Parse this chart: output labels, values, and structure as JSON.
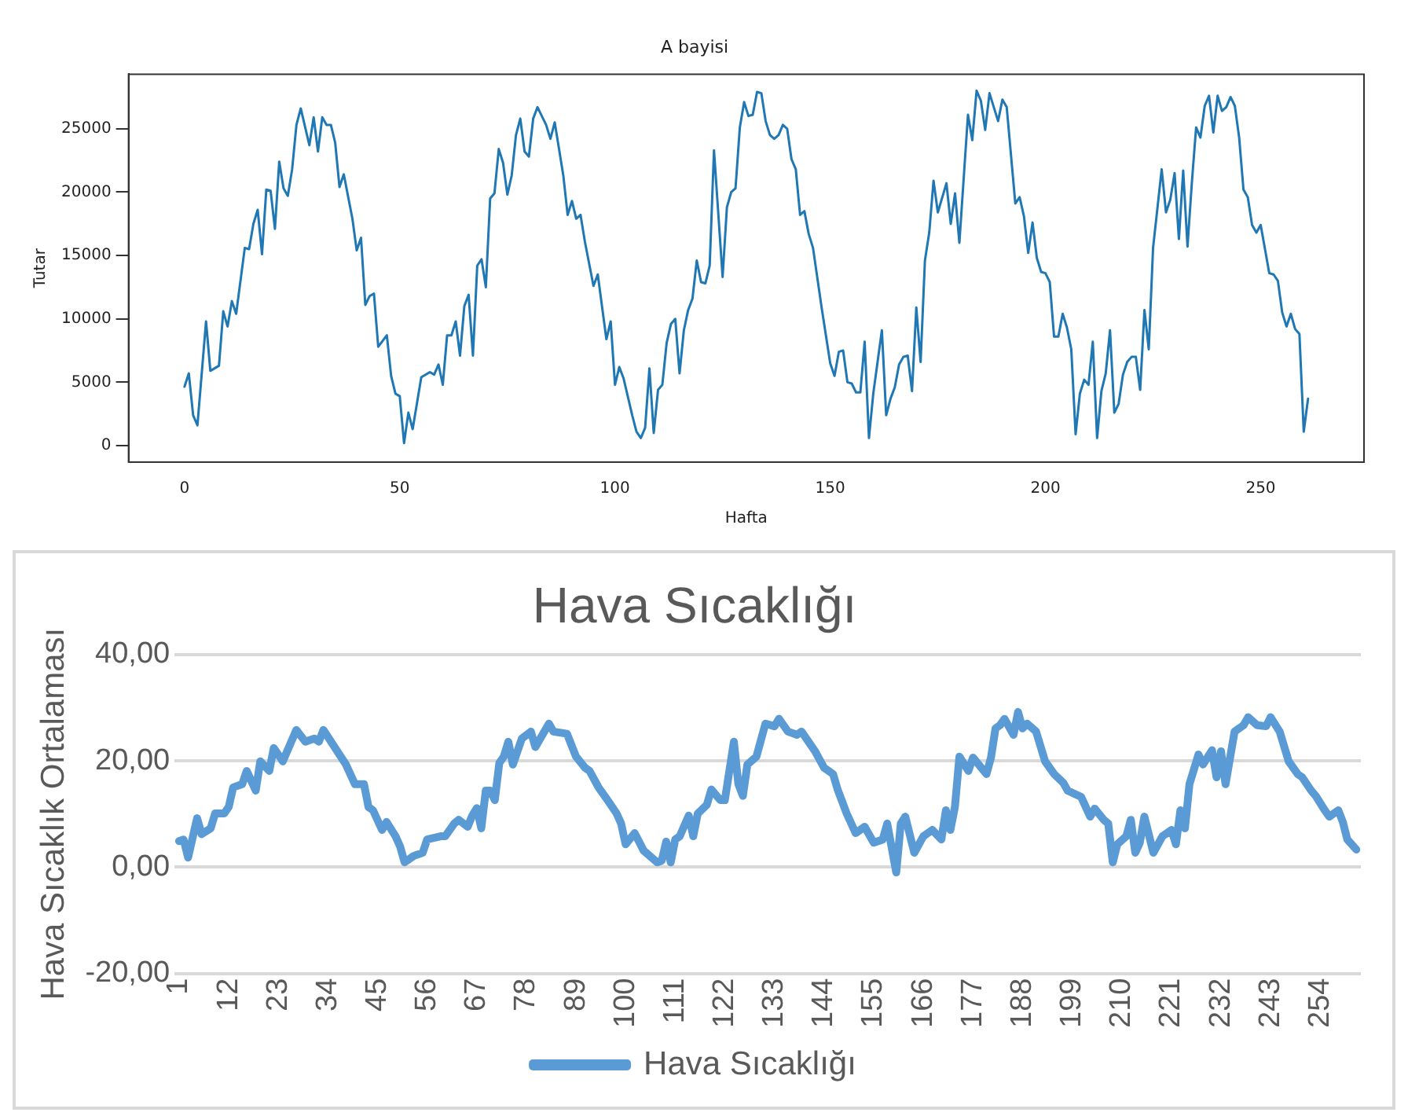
{
  "chart_data": [
    {
      "type": "line",
      "title": "A bayisi",
      "xlabel": "Hafta",
      "ylabel": "Tutar",
      "x": [
        0,
        1,
        2,
        3,
        5,
        6,
        8,
        9,
        10,
        11,
        12,
        14,
        15,
        16,
        17,
        18,
        19,
        20,
        21,
        22,
        23,
        24,
        25,
        26,
        27,
        29,
        30,
        31,
        32,
        33,
        34,
        35,
        36,
        37,
        39,
        40,
        41,
        42,
        43,
        44,
        45,
        47,
        48,
        49,
        50,
        51,
        52,
        53,
        55,
        57,
        58,
        59,
        60,
        61,
        62,
        63,
        64,
        65,
        66,
        67,
        68,
        69,
        70,
        71,
        72,
        73,
        74,
        75,
        76,
        77,
        78,
        79,
        80,
        81,
        82,
        84,
        85,
        86,
        87,
        88,
        89,
        90,
        91,
        92,
        93,
        95,
        96,
        98,
        99,
        100,
        101,
        102,
        104,
        105,
        106,
        107,
        108,
        109,
        110,
        111,
        112,
        113,
        114,
        115,
        116,
        117,
        118,
        119,
        120,
        121,
        122,
        123,
        125,
        126,
        127,
        128,
        129,
        130,
        131,
        132,
        133,
        134,
        135,
        136,
        137,
        138,
        139,
        140,
        141,
        142,
        143,
        144,
        145,
        146,
        148,
        150,
        151,
        152,
        153,
        154,
        155,
        156,
        157,
        158,
        159,
        160,
        162,
        163,
        164,
        165,
        166,
        167,
        168,
        169,
        170,
        171,
        172,
        173,
        174,
        175,
        177,
        178,
        179,
        180,
        182,
        183,
        184,
        185,
        186,
        187,
        189,
        190,
        191,
        193,
        194,
        195,
        196,
        197,
        198,
        199,
        200,
        201,
        202,
        203,
        204,
        205,
        206,
        207,
        208,
        209,
        210,
        211,
        212,
        213,
        214,
        215,
        216,
        217,
        218,
        219,
        220,
        221,
        222,
        223,
        224,
        225,
        227,
        228,
        229,
        230,
        231,
        232,
        233,
        234,
        235,
        236,
        237,
        238,
        239,
        240,
        241,
        242,
        243,
        244,
        245,
        246,
        247,
        248,
        249,
        250,
        252,
        253,
        254,
        255,
        256,
        257,
        258,
        259,
        260,
        261
      ],
      "series": [
        {
          "color": "#1f77b4",
          "values": [
            4650,
            5700,
            2400,
            1600,
            9800,
            5900,
            6300,
            10600,
            9400,
            11400,
            10400,
            15600,
            15500,
            17500,
            18600,
            15100,
            20200,
            20100,
            17100,
            22400,
            20300,
            19700,
            21800,
            25300,
            26600,
            23700,
            25900,
            23200,
            25900,
            25300,
            25300,
            23900,
            20400,
            21400,
            17900,
            15400,
            16400,
            11100,
            11800,
            12000,
            7800,
            8700,
            5500,
            4100,
            3900,
            200,
            2600,
            1300,
            5400,
            5800,
            5600,
            6400,
            4800,
            8700,
            8700,
            9800,
            7100,
            11000,
            11900,
            7100,
            14200,
            14700,
            12500,
            19500,
            19900,
            23400,
            22300,
            19800,
            21300,
            24500,
            25800,
            23200,
            22800,
            25800,
            26700,
            25300,
            24200,
            25500,
            23400,
            21300,
            18200,
            19300,
            17900,
            18200,
            16100,
            12600,
            13500,
            8400,
            9800,
            4800,
            6200,
            5300,
            2400,
            1100,
            600,
            1400,
            6100,
            1000,
            4400,
            4800,
            8100,
            9600,
            10000,
            5700,
            9100,
            10700,
            11600,
            14600,
            12900,
            12800,
            14200,
            23300,
            13300,
            18800,
            20000,
            20300,
            25100,
            27100,
            26000,
            26100,
            27900,
            27800,
            25600,
            24500,
            24200,
            24500,
            25300,
            25000,
            22600,
            21800,
            18200,
            18500,
            16700,
            15600,
            10900,
            6500,
            5500,
            7400,
            7500,
            5000,
            4900,
            4200,
            4200,
            8200,
            600,
            4100,
            9100,
            2400,
            3700,
            4600,
            6400,
            7000,
            7100,
            4300,
            10900,
            6600,
            14600,
            16800,
            20900,
            18400,
            20700,
            17500,
            19900,
            16000,
            26100,
            24100,
            28000,
            27200,
            24900,
            27800,
            25600,
            27300,
            26700,
            19100,
            19600,
            18100,
            15200,
            17600,
            14800,
            13700,
            13600,
            12900,
            8600,
            8600,
            10400,
            9300,
            7600,
            900,
            4100,
            5200,
            4800,
            8200,
            600,
            4300,
            5700,
            9100,
            2600,
            3300,
            5600,
            6600,
            7000,
            7000,
            4400,
            10700,
            7600,
            15600,
            21800,
            18400,
            19400,
            21500,
            16300,
            21700,
            15700,
            20700,
            25100,
            24300,
            26800,
            27600,
            24700,
            27600,
            26400,
            26700,
            27500,
            26800,
            24300,
            20200,
            19600,
            17400,
            16800,
            17400,
            13600,
            13500,
            13000,
            10500,
            9400,
            10400,
            9200,
            8800,
            1100,
            3700
          ]
        }
      ],
      "xlim": [
        -13,
        274
      ],
      "ylim": [
        -1300,
        29300
      ],
      "xticks": [
        0,
        50,
        100,
        150,
        200,
        250
      ],
      "yticks": [
        0,
        5000,
        10000,
        15000,
        20000,
        25000
      ]
    },
    {
      "type": "line",
      "title": "Hava Sıcaklığı",
      "ylabel": "Hava Sıcaklık Ortalaması",
      "x": [
        1,
        2,
        3,
        5,
        6,
        8,
        9,
        11,
        12,
        13,
        15,
        16,
        18,
        19,
        21,
        22,
        24,
        27,
        29,
        31,
        32,
        33,
        37,
        38,
        40,
        42,
        43,
        44,
        46,
        47,
        49,
        50,
        51,
        53,
        55,
        56,
        59,
        60,
        62,
        63,
        65,
        66,
        67,
        68,
        69,
        70,
        71,
        72,
        73,
        74,
        75,
        77,
        79,
        80,
        83,
        84,
        87,
        89,
        91,
        92,
        94,
        96,
        98,
        99,
        100,
        102,
        104,
        107,
        108,
        109,
        110,
        111,
        112,
        114,
        115,
        116,
        118,
        119,
        121,
        122,
        124,
        125,
        126,
        127,
        129,
        131,
        133,
        134,
        136,
        138,
        139,
        142,
        144,
        146,
        147,
        149,
        151,
        153,
        155,
        157,
        158,
        160,
        161,
        162,
        164,
        166,
        168,
        170,
        171,
        172,
        173,
        174,
        176,
        177,
        178,
        180,
        181,
        182,
        183,
        184,
        186,
        187,
        188,
        189,
        191,
        193,
        195,
        197,
        198,
        201,
        203,
        204,
        206,
        207,
        208,
        209,
        211,
        212,
        213,
        214,
        215,
        217,
        219,
        221,
        222,
        223,
        224,
        225,
        227,
        228,
        230,
        231,
        232,
        233,
        235,
        237,
        238,
        240,
        242,
        243,
        245,
        247,
        249,
        250,
        252,
        253,
        255,
        256,
        258,
        259,
        260,
        262
      ],
      "series": [
        {
          "name": "Hava Sıcaklığı",
          "color": "#5b9bd5",
          "values": [
            4.9,
            5.2,
            1.8,
            9.2,
            6.2,
            7.3,
            10.1,
            10.1,
            11.3,
            15,
            15.6,
            18.1,
            14.4,
            19.9,
            18.1,
            22.4,
            19.9,
            25.8,
            23.6,
            24.2,
            23.6,
            25.8,
            20.6,
            19.3,
            15.6,
            15.6,
            11.3,
            10.7,
            7,
            8.5,
            5.8,
            3.9,
            0.9,
            2.1,
            2.7,
            5.2,
            5.8,
            5.8,
            8.2,
            8.9,
            7.6,
            9.7,
            11.1,
            7.3,
            14.4,
            14.4,
            12.6,
            19.6,
            20.8,
            23.6,
            19.3,
            24.2,
            25.5,
            22.6,
            27,
            25.5,
            25.1,
            20.8,
            18.7,
            18.1,
            15,
            12.6,
            10.1,
            8.2,
            4.3,
            6.4,
            3.1,
            0.9,
            1.2,
            4.8,
            0.9,
            5.2,
            5.8,
            9.7,
            5.8,
            10.1,
            11.7,
            14.6,
            12.6,
            12.6,
            23.6,
            15.6,
            13.4,
            19.3,
            20.8,
            27,
            26.5,
            27.9,
            25.5,
            24.9,
            25.5,
            21.8,
            18.7,
            17.5,
            14.6,
            10.1,
            6.4,
            7.6,
            4.6,
            5.2,
            8.2,
            -1,
            8.2,
            9.5,
            2.7,
            5.8,
            7,
            5.2,
            10.7,
            7,
            11.3,
            20.8,
            18.1,
            20.6,
            19.6,
            17.5,
            20.6,
            26.1,
            26.7,
            27.9,
            24.9,
            29.2,
            26.1,
            27,
            25.5,
            19.9,
            17.5,
            15.9,
            14.4,
            13.2,
            9.5,
            11,
            8.9,
            8.2,
            0.9,
            4.3,
            5.8,
            8.9,
            2.7,
            4.6,
            9.5,
            2.7,
            5.8,
            7,
            4.3,
            10.7,
            7.3,
            15.6,
            21.2,
            19.3,
            22,
            16.9,
            21.8,
            15.6,
            25.5,
            26.7,
            28.2,
            26.7,
            26.5,
            28.2,
            25.5,
            19.9,
            17.5,
            16.9,
            14.4,
            13.4,
            10.7,
            9.5,
            10.7,
            8.5,
            5.2,
            3.3
          ]
        }
      ],
      "xlim": [
        0,
        263
      ],
      "ylim": [
        -20,
        40
      ],
      "xticks": [
        1,
        12,
        23,
        34,
        45,
        56,
        67,
        78,
        89,
        100,
        111,
        122,
        133,
        144,
        155,
        166,
        177,
        188,
        199,
        210,
        221,
        232,
        243,
        254
      ],
      "yticks": [
        {
          "value": -20,
          "label": "-20,00"
        },
        {
          "value": 0,
          "label": "0,00"
        },
        {
          "value": 20,
          "label": "20,00"
        },
        {
          "value": 40,
          "label": "40,00"
        }
      ],
      "grid": "y",
      "legend": "bottom"
    }
  ]
}
